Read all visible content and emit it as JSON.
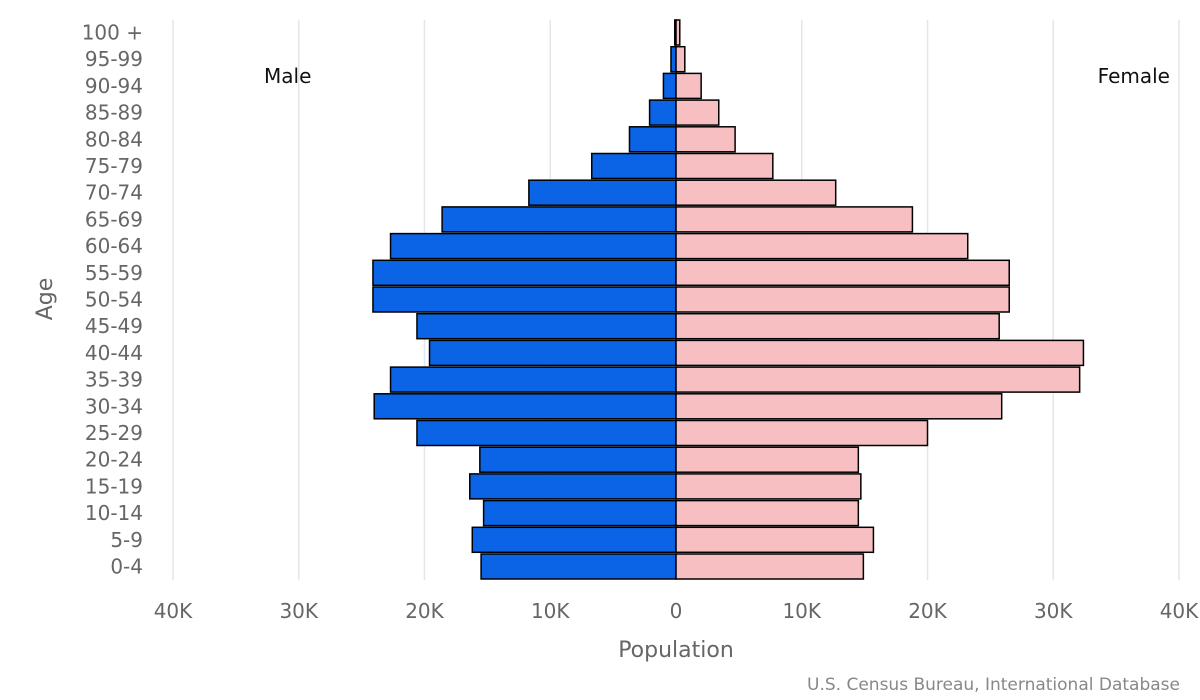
{
  "chart_data": {
    "type": "bar",
    "orientation": "horizontal",
    "title": "",
    "xlabel": "Population",
    "ylabel": "Age",
    "xlim": [
      -40000,
      40000
    ],
    "x_ticks": [
      -40000,
      -30000,
      -20000,
      -10000,
      0,
      10000,
      20000,
      30000,
      40000
    ],
    "x_tick_labels": [
      "40K",
      "30K",
      "20K",
      "10K",
      "0",
      "10K",
      "20K",
      "30K",
      "40K"
    ],
    "grid": true,
    "categories": [
      "100 +",
      "95-99",
      "90-94",
      "85-89",
      "80-84",
      "75-79",
      "70-74",
      "65-69",
      "60-64",
      "55-59",
      "50-54",
      "45-49",
      "40-44",
      "35-39",
      "30-34",
      "25-29",
      "20-24",
      "15-19",
      "10-14",
      "5-9",
      "0-4"
    ],
    "series": [
      {
        "name": "Male",
        "color": "#0b63e5",
        "values": [
          100,
          400,
          1000,
          2100,
          3700,
          6700,
          11700,
          18600,
          22700,
          24100,
          24100,
          20600,
          19600,
          22700,
          24000,
          20600,
          15600,
          16400,
          15300,
          16200,
          15500
        ]
      },
      {
        "name": "Female",
        "color": "#f7bfc1",
        "values": [
          300,
          700,
          2000,
          3400,
          4700,
          7700,
          12700,
          18800,
          23200,
          26500,
          26500,
          25700,
          32400,
          32100,
          25900,
          20000,
          14500,
          14700,
          14500,
          15700,
          14900
        ]
      }
    ],
    "annotations": {
      "left": "Male",
      "right": "Female"
    },
    "credit": "U.S. Census Bureau, International Database"
  }
}
